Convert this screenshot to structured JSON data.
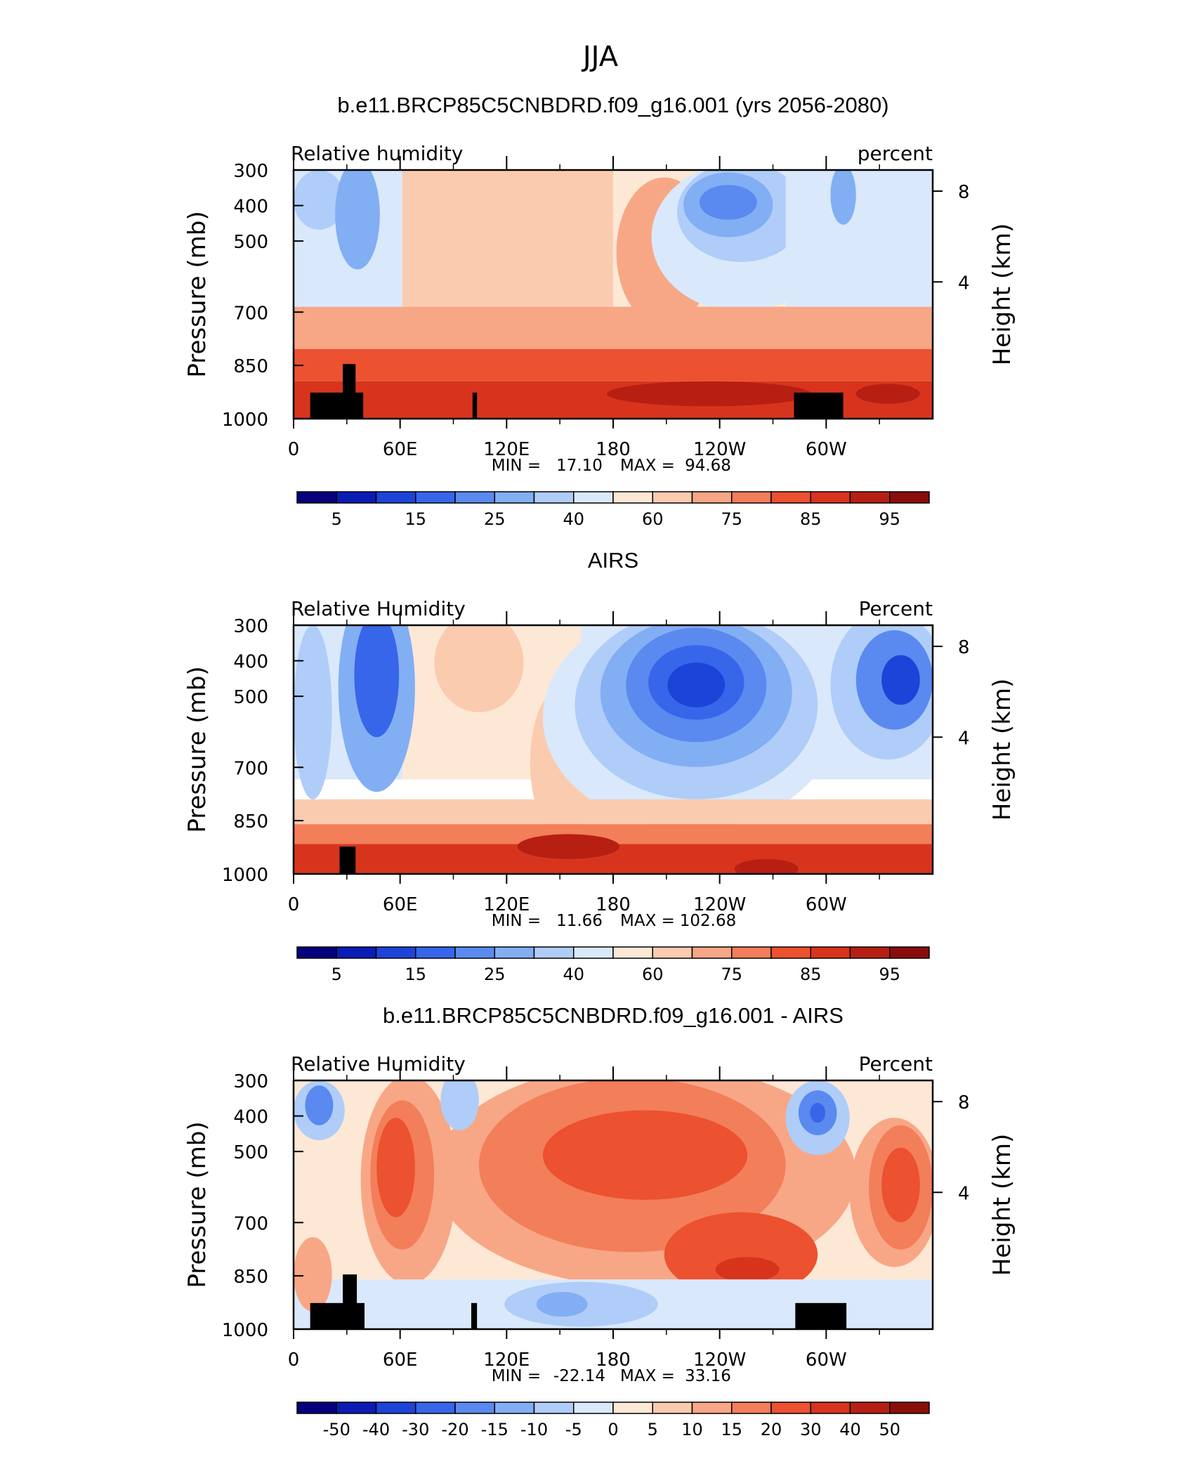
{
  "figure_title": "JJA",
  "x_ticks": [
    "0",
    "60E",
    "120E",
    "180",
    "120W",
    "60W"
  ],
  "left_axis_label": "Pressure (mb)",
  "right_axis_label": "Height (km)",
  "pressure_ticks": [
    "300",
    "400",
    "500",
    "700",
    "850",
    "1000"
  ],
  "height_ticks": [
    "8",
    "4"
  ],
  "chart_data": [
    {
      "type": "heatmap",
      "title": "b.e11.BRCP85C5CNBDRD.f09_g16.001 (yrs 2056-2080)",
      "variable_label": "Relative humidity",
      "units_label": "percent",
      "stats": {
        "min_label": "MIN =",
        "min": "17.10",
        "max_label": "MAX =",
        "max": "94.68"
      },
      "colorbar_labels": [
        "5",
        "15",
        "25",
        "40",
        "60",
        "75",
        "85",
        "95"
      ],
      "colors": [
        "#06007d",
        "#0a1cb4",
        "#1d44d8",
        "#3766ea",
        "#5a8aef",
        "#82aef4",
        "#afcdf8",
        "#d9e9fb",
        "#fde8d6",
        "#fbcbb0",
        "#f8a786",
        "#f37e5a",
        "#ec5130",
        "#d8341d",
        "#b71f13",
        "#8a0d0a"
      ],
      "xlabel": "",
      "ylabel": "Pressure (mb)"
    },
    {
      "type": "heatmap",
      "title": "AIRS",
      "variable_label": "Relative Humidity",
      "units_label": "Percent",
      "stats": {
        "min_label": "MIN =",
        "min": "11.66",
        "max_label": "MAX =",
        "max": "102.68"
      },
      "colorbar_labels": [
        "5",
        "15",
        "25",
        "40",
        "60",
        "75",
        "85",
        "95"
      ],
      "colors": [
        "#06007d",
        "#0a1cb4",
        "#1d44d8",
        "#3766ea",
        "#5a8aef",
        "#82aef4",
        "#afcdf8",
        "#d9e9fb",
        "#fde8d6",
        "#fbcbb0",
        "#f8a786",
        "#f37e5a",
        "#ec5130",
        "#d8341d",
        "#b71f13",
        "#8a0d0a"
      ],
      "xlabel": "",
      "ylabel": "Pressure (mb)"
    },
    {
      "type": "heatmap",
      "title": "b.e11.BRCP85C5CNBDRD.f09_g16.001 - AIRS",
      "variable_label": "Relative Humidity",
      "units_label": "Percent",
      "stats": {
        "min_label": "MIN =",
        "min": "-22.14",
        "max_label": "MAX =",
        "max": "33.16"
      },
      "colorbar_labels": [
        "-50",
        "-40",
        "-30",
        "-20",
        "-15",
        "-10",
        "-5",
        "0",
        "5",
        "10",
        "15",
        "20",
        "30",
        "40",
        "50"
      ],
      "colors": [
        "#06007d",
        "#0a1cb4",
        "#1d44d8",
        "#3766ea",
        "#5a8aef",
        "#82aef4",
        "#afcdf8",
        "#d9e9fb",
        "#fde8d6",
        "#fbcbb0",
        "#f8a786",
        "#f37e5a",
        "#ec5130",
        "#d8341d",
        "#b71f13",
        "#8a0d0a"
      ],
      "xlabel": "",
      "ylabel": "Pressure (mb)"
    }
  ]
}
